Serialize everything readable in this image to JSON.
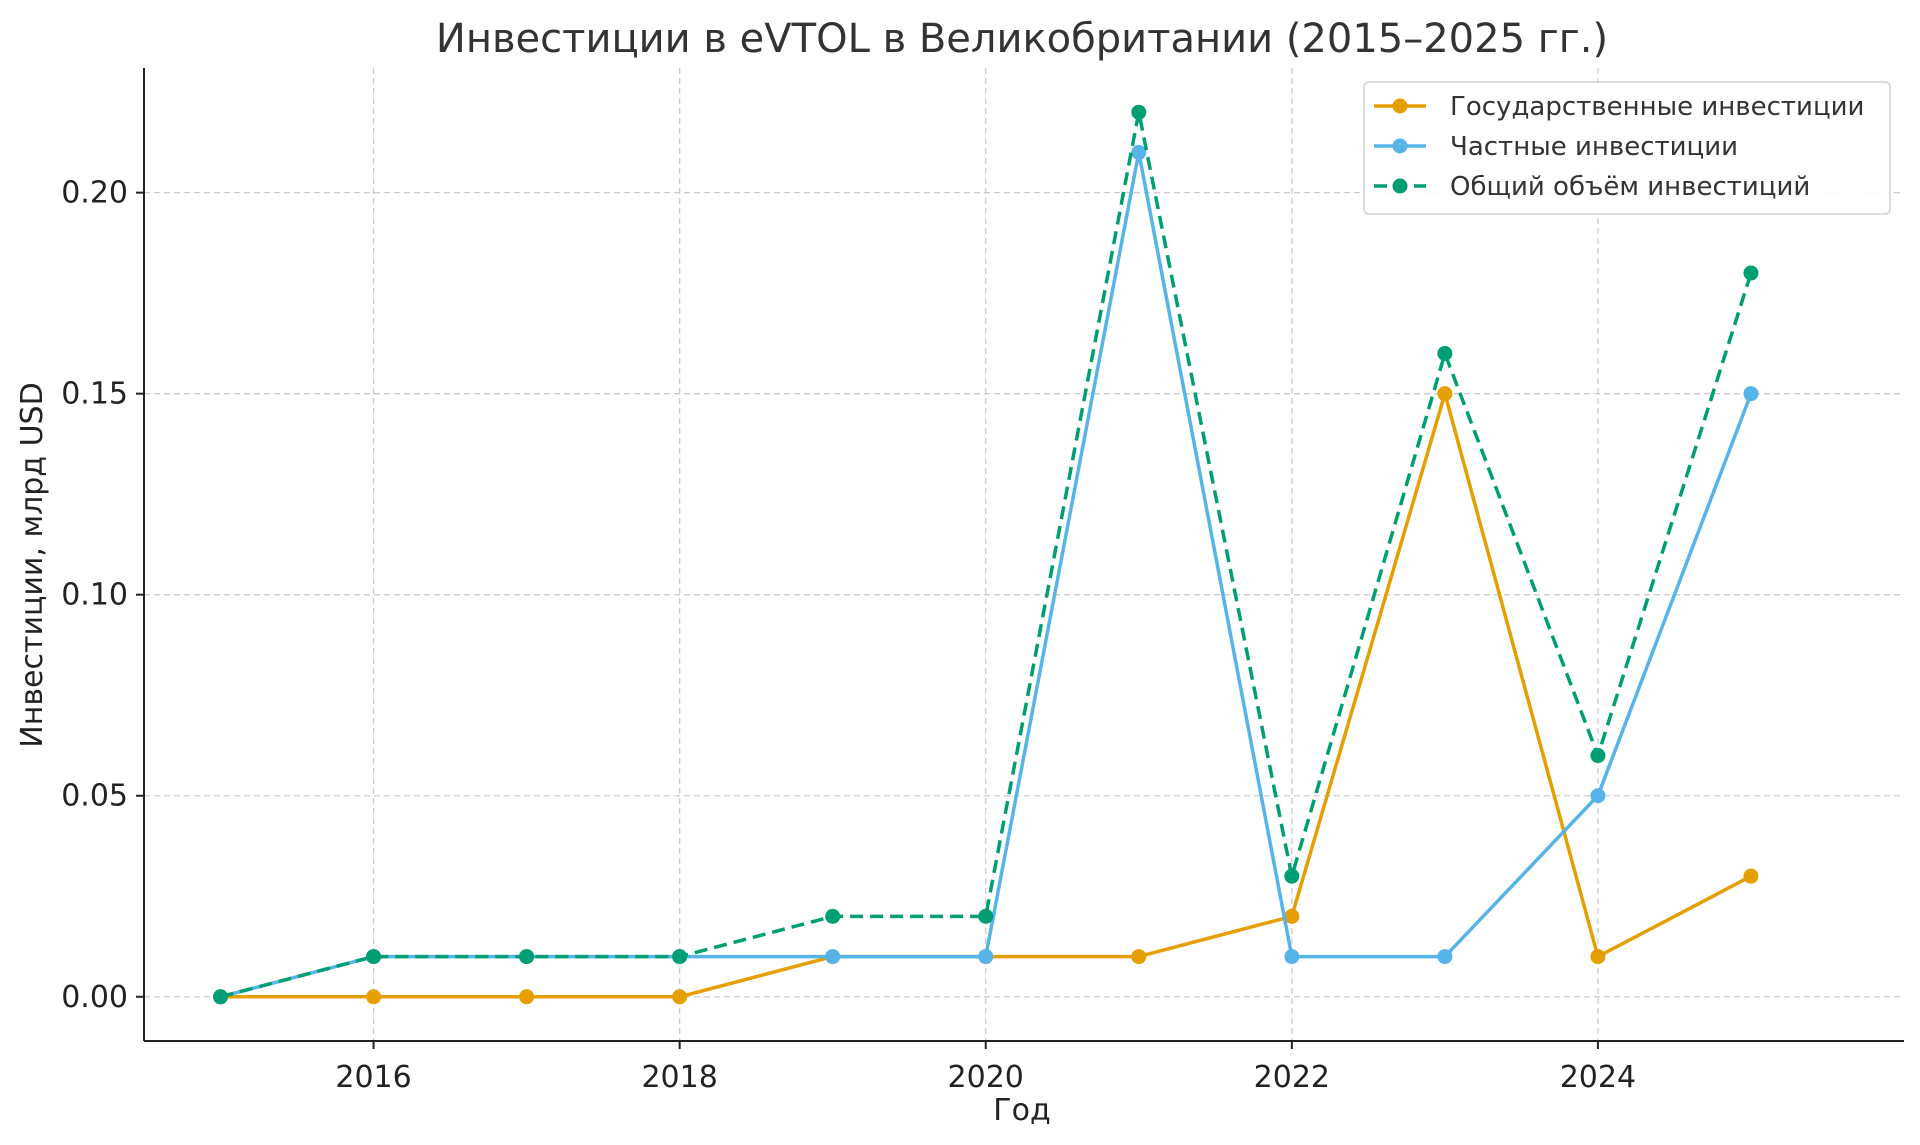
{
  "chart_data": {
    "type": "line",
    "title": "Инвестиции в eVTOL в Великобритании (2015–2025 гг.)",
    "xlabel": "Год",
    "ylabel": "Инвестиции, млрд USD",
    "x": [
      2015,
      2016,
      2017,
      2018,
      2019,
      2020,
      2021,
      2022,
      2023,
      2024,
      2025
    ],
    "xlim": [
      2014.5,
      2026.0
    ],
    "ylim": [
      -0.011,
      0.231
    ],
    "x_ticks": [
      2016,
      2018,
      2020,
      2022,
      2024
    ],
    "x_tick_labels": [
      "2016",
      "2018",
      "2020",
      "2022",
      "2024"
    ],
    "y_ticks": [
      0.0,
      0.05,
      0.1,
      0.15,
      0.2
    ],
    "y_tick_labels": [
      "0.00",
      "0.05",
      "0.10",
      "0.15",
      "0.20"
    ],
    "grid": true,
    "legend_position": "top-right",
    "series": [
      {
        "name": "Государственные инвестиции",
        "color": "#E69F00",
        "dashed": false,
        "values": [
          0.0,
          0.0,
          0.0,
          0.0,
          0.01,
          0.01,
          0.01,
          0.02,
          0.15,
          0.01,
          0.03
        ]
      },
      {
        "name": "Частные инвестиции",
        "color": "#56B4E9",
        "dashed": false,
        "values": [
          0.0,
          0.01,
          0.01,
          0.01,
          0.01,
          0.01,
          0.21,
          0.01,
          0.01,
          0.05,
          0.15
        ]
      },
      {
        "name": "Общий объём инвестиций",
        "color": "#009E73",
        "dashed": true,
        "values": [
          0.0,
          0.01,
          0.01,
          0.01,
          0.02,
          0.02,
          0.22,
          0.03,
          0.16,
          0.06,
          0.18
        ]
      }
    ]
  }
}
